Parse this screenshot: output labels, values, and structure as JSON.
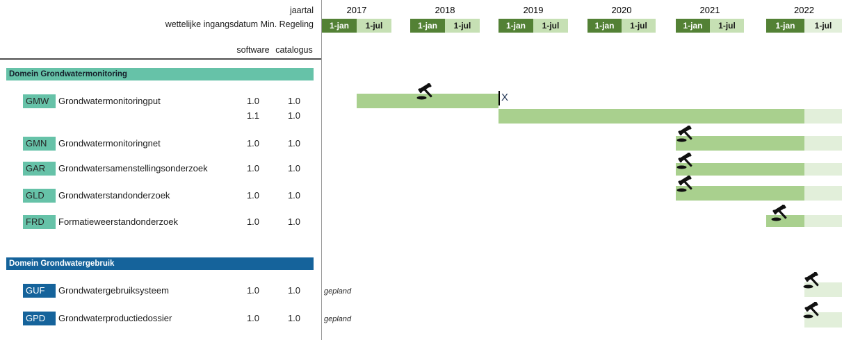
{
  "colors": {
    "dark_green": "#538135",
    "cell_jul_green": "#c6e0b4",
    "cell_jul_2022": "#e2efda",
    "bar_realized": "#a9d08e",
    "bar_planned": "#e2efda",
    "domain1_teal": "#66c2a8",
    "domain2_blue": "#15639b"
  },
  "header": {
    "axis_label": "jaartal",
    "regulation_label": "wettelijke ingangsdatum Min. Regeling",
    "col_software": "software",
    "col_catalogus": "catalogus",
    "years": [
      "2017",
      "2018",
      "2019",
      "2020",
      "2021",
      "2022"
    ],
    "half_year_labels": [
      "1-jan",
      "1-jul"
    ]
  },
  "domains": [
    {
      "title": "Domein Grondwatermonitoring",
      "rows": [
        {
          "code": "GMW",
          "name": "Grondwatermonitoringput",
          "versions": [
            {
              "software": "1.0",
              "catalogus": "1.0"
            },
            {
              "software": "1.1",
              "catalogus": "1.0"
            }
          ]
        },
        {
          "code": "GMN",
          "name": "Grondwatermonitoringnet",
          "versions": [
            {
              "software": "1.0",
              "catalogus": "1.0"
            }
          ]
        },
        {
          "code": "GAR",
          "name": "Grondwatersamenstellingsonderzoek",
          "versions": [
            {
              "software": "1.0",
              "catalogus": "1.0"
            }
          ]
        },
        {
          "code": "GLD",
          "name": "Grondwaterstandonderzoek",
          "versions": [
            {
              "software": "1.0",
              "catalogus": "1.0"
            }
          ]
        },
        {
          "code": "FRD",
          "name": "Formatieweerstandonderzoek",
          "versions": [
            {
              "software": "1.0",
              "catalogus": "1.0"
            }
          ]
        }
      ]
    },
    {
      "title": "Domein Grondwatergebruik",
      "rows": [
        {
          "code": "GUF",
          "name": "Grondwatergebruiksysteem",
          "versions": [
            {
              "software": "1.0",
              "catalogus": "1.0"
            }
          ],
          "status": "gepland"
        },
        {
          "code": "GPD",
          "name": "Grondwaterproductiedossier",
          "versions": [
            {
              "software": "1.0",
              "catalogus": "1.0"
            }
          ],
          "status": "gepland"
        }
      ]
    }
  ],
  "chart_data": {
    "type": "bar",
    "subtype": "gantt-timeline",
    "title": "",
    "xlabel": "jaartal",
    "x_axis": {
      "years": [
        2017,
        2018,
        2019,
        2020,
        2021,
        2022
      ],
      "half_tick_labels": [
        "1-jan",
        "1-jul"
      ],
      "range": [
        2017,
        2023
      ]
    },
    "legend": {
      "realized_color": "#a9d08e",
      "planned_color": "#e2efda"
    },
    "bars": [
      {
        "lane": 0,
        "label": "GMW 1.0",
        "segments": [
          {
            "from": 2017.5,
            "to": 2019.0,
            "status": "realized"
          }
        ],
        "gavel_at": 2018.08
      },
      {
        "lane": 1,
        "label": "GMW 1.1",
        "segments": [
          {
            "from": 2019.0,
            "to": 2022.5,
            "status": "realized"
          },
          {
            "from": 2022.5,
            "to": 2023.0,
            "status": "planned"
          }
        ]
      },
      {
        "lane": 2,
        "label": "GMN 1.0",
        "segments": [
          {
            "from": 2021.0,
            "to": 2022.5,
            "status": "realized"
          },
          {
            "from": 2022.5,
            "to": 2023.0,
            "status": "planned"
          }
        ],
        "gavel_at": 2021.0
      },
      {
        "lane": 3,
        "label": "GAR 1.0",
        "segments": [
          {
            "from": 2021.0,
            "to": 2022.5,
            "status": "realized"
          },
          {
            "from": 2022.5,
            "to": 2023.0,
            "status": "planned"
          }
        ],
        "gavel_at": 2021.0
      },
      {
        "lane": 4,
        "label": "GLD 1.0",
        "segments": [
          {
            "from": 2021.0,
            "to": 2022.5,
            "status": "realized"
          },
          {
            "from": 2022.5,
            "to": 2023.0,
            "status": "planned"
          }
        ],
        "gavel_at": 2021.0
      },
      {
        "lane": 5,
        "label": "FRD 1.0",
        "segments": [
          {
            "from": 2022.0,
            "to": 2022.5,
            "status": "realized"
          },
          {
            "from": 2022.5,
            "to": 2023.0,
            "status": "planned"
          }
        ],
        "gavel_at": 2022.05
      },
      {
        "lane": 6,
        "label": "GUF 1.0",
        "segments": [
          {
            "from": 2022.5,
            "to": 2023.0,
            "status": "planned"
          }
        ],
        "gavel_at": 2022.47
      },
      {
        "lane": 7,
        "label": "GPD 1.0",
        "segments": [
          {
            "from": 2022.5,
            "to": 2023.0,
            "status": "planned"
          }
        ],
        "gavel_at": 2022.47
      }
    ],
    "milestones": [
      {
        "lane": 0,
        "at": 2019.0,
        "label": "X"
      }
    ]
  }
}
